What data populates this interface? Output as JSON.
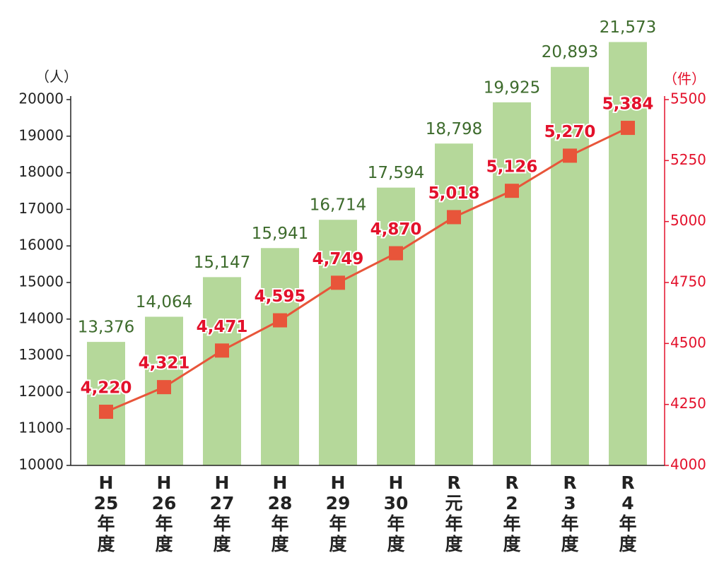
{
  "chart_data": {
    "type": "bar-line",
    "y_label": "（人）",
    "y2_label": "（件）",
    "categories": [
      [
        "H",
        "25",
        "年",
        "度"
      ],
      [
        "H",
        "26",
        "年",
        "度"
      ],
      [
        "H",
        "27",
        "年",
        "度"
      ],
      [
        "H",
        "28",
        "年",
        "度"
      ],
      [
        "H",
        "29",
        "年",
        "度"
      ],
      [
        "H",
        "30",
        "年",
        "度"
      ],
      [
        "R",
        "元",
        "年",
        "度"
      ],
      [
        "R",
        "2",
        "年",
        "度"
      ],
      [
        "R",
        "3",
        "年",
        "度"
      ],
      [
        "R",
        "4",
        "年",
        "度"
      ]
    ],
    "series": [
      {
        "type": "bar",
        "color": "#b5d89a",
        "label_color": "#3d6b2c",
        "values": [
          13376,
          14064,
          15147,
          15941,
          16714,
          17594,
          18798,
          19925,
          20893,
          21573
        ],
        "value_labels": [
          "13,376",
          "14,064",
          "15,147",
          "15,941",
          "16,714",
          "17,594",
          "18,798",
          "19,925",
          "20,893",
          "21,573"
        ]
      },
      {
        "type": "line",
        "axis": "y2",
        "color": "#e8553a",
        "label_color": "#e3112b",
        "values": [
          4220,
          4321,
          4471,
          4595,
          4749,
          4870,
          5018,
          5126,
          5270,
          5384
        ],
        "value_labels": [
          "4,220",
          "4,321",
          "4,471",
          "4,595",
          "4,749",
          "4,870",
          "5,018",
          "5,126",
          "5,270",
          "5,384"
        ]
      }
    ],
    "ylim": [
      10000,
      20000
    ],
    "yticks": [
      10000,
      11000,
      12000,
      13000,
      14000,
      15000,
      16000,
      17000,
      18000,
      19000,
      20000
    ],
    "y2lim": [
      4000,
      5500
    ],
    "y2ticks": [
      4000,
      4250,
      4500,
      4750,
      5000,
      5250,
      5500
    ],
    "y2_color": "#e3112b",
    "grid": false
  }
}
